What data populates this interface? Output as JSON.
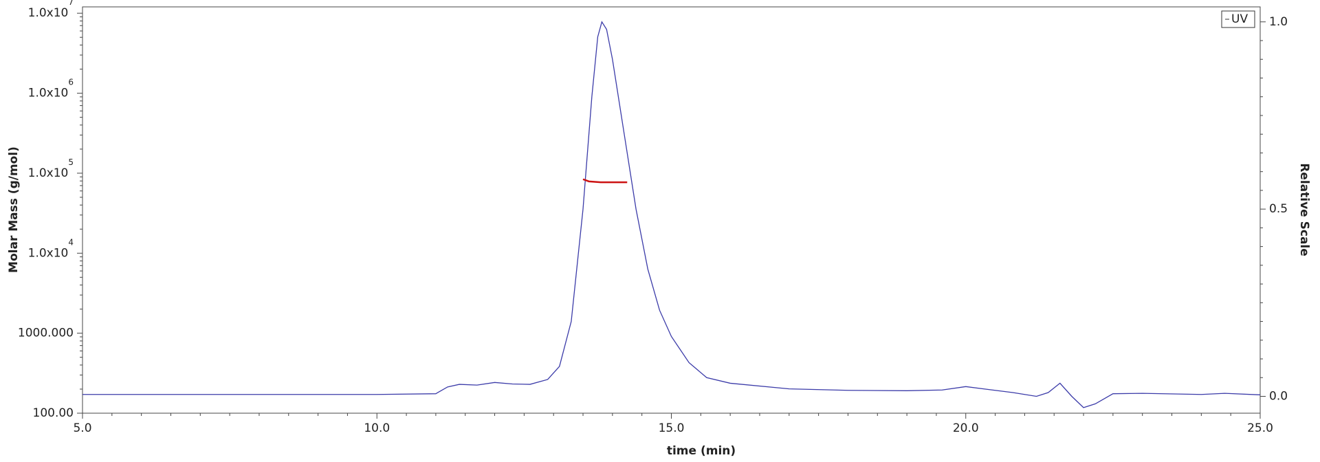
{
  "chart_data": {
    "type": "line",
    "xlabel": "time (min)",
    "ylabel": "Molar Mass (g/mol)",
    "y2label": "Relative Scale",
    "xlim": [
      5.0,
      25.0
    ],
    "xticks": [
      {
        "value": 5,
        "label": "5.0"
      },
      {
        "value": 10,
        "label": "10.0"
      },
      {
        "value": 15,
        "label": "15.0"
      },
      {
        "value": 20,
        "label": "20.0"
      },
      {
        "value": 25,
        "label": "25.0"
      }
    ],
    "ylim": [
      100,
      12000000
    ],
    "yscale": "log",
    "yticks": [
      {
        "value": 100,
        "label": "100.00"
      },
      {
        "value": 1000,
        "label": "1000.000"
      },
      {
        "value": 10000,
        "label": "1.0x10",
        "exponent": "4"
      },
      {
        "value": 100000,
        "label": "1.0x10",
        "exponent": "5"
      },
      {
        "value": 1000000,
        "label": "1.0x10",
        "exponent": "6"
      },
      {
        "value": 10000000,
        "label": "1.0x10",
        "exponent": "7"
      }
    ],
    "y2lim": [
      -0.045,
      1.04
    ],
    "y2ticks": [
      {
        "value": 0,
        "label": "0.0"
      },
      {
        "value": 0.5,
        "label": "0.5"
      },
      {
        "value": 1,
        "label": "1.0"
      }
    ],
    "legend": "upper right",
    "grid": false,
    "series": [
      {
        "name": "UV",
        "color": "#3a3aa8",
        "axis": "y2",
        "x": [
          5.0,
          10.0,
          11.0,
          11.2,
          11.4,
          11.7,
          12.0,
          12.3,
          12.6,
          12.9,
          13.1,
          13.3,
          13.5,
          13.65,
          13.75,
          13.82,
          13.9,
          14.0,
          14.2,
          14.4,
          14.6,
          14.8,
          15.0,
          15.3,
          15.6,
          16.0,
          17.0,
          18.0,
          19.0,
          19.6,
          20.0,
          20.3,
          20.8,
          21.2,
          21.4,
          21.6,
          21.8,
          22.0,
          22.2,
          22.5,
          23.0,
          24.0,
          24.4,
          25.0
        ],
        "values": [
          0.005,
          0.005,
          0.007,
          0.025,
          0.032,
          0.03,
          0.037,
          0.033,
          0.032,
          0.045,
          0.08,
          0.2,
          0.5,
          0.8,
          0.96,
          1.0,
          0.98,
          0.9,
          0.7,
          0.5,
          0.34,
          0.23,
          0.16,
          0.09,
          0.05,
          0.035,
          0.02,
          0.016,
          0.015,
          0.017,
          0.026,
          0.02,
          0.01,
          0.0,
          0.01,
          0.035,
          0.0,
          -0.03,
          -0.02,
          0.007,
          0.008,
          0.005,
          0.008,
          0.004
        ]
      },
      {
        "color": "#cc1111",
        "x": [
          13.5,
          13.6,
          13.8,
          14.0,
          14.25
        ],
        "values": [
          84000,
          79000,
          77000,
          77000,
          77000
        ]
      }
    ]
  }
}
